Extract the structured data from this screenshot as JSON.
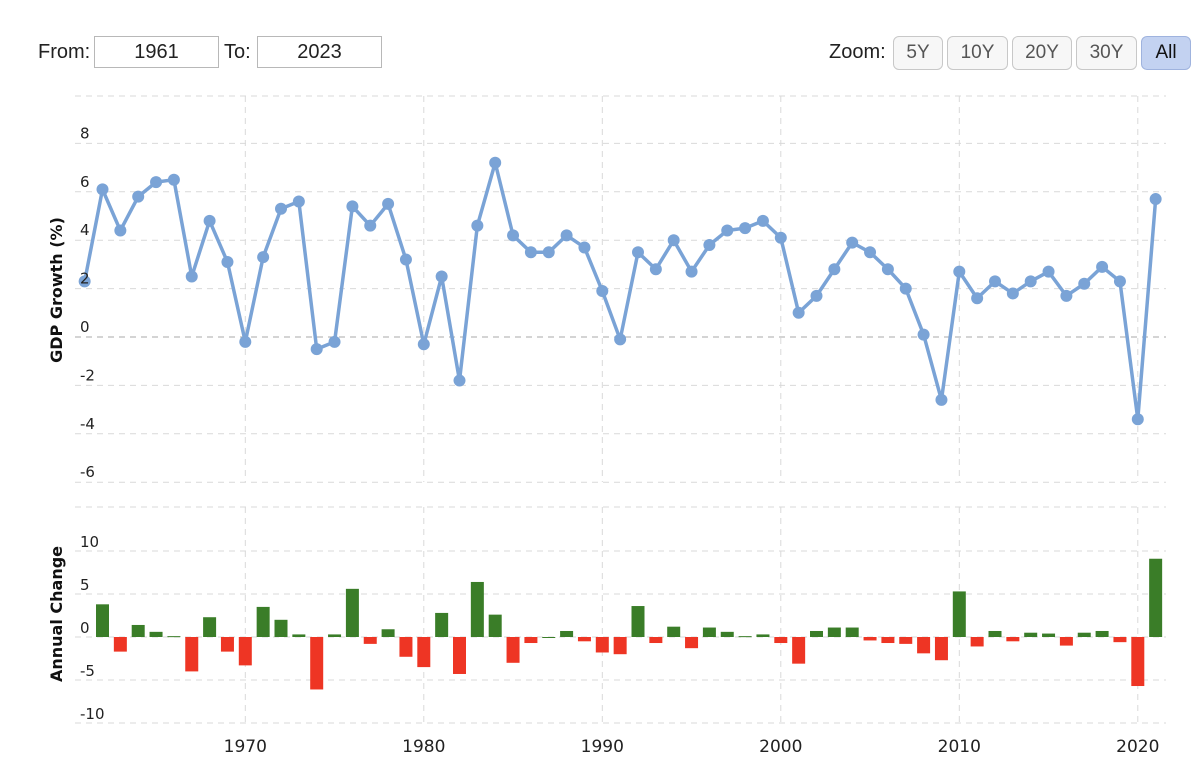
{
  "controls": {
    "from_label": "From:",
    "from_value": "1961",
    "to_label": "To:",
    "to_value": "2023",
    "zoom_label": "Zoom:",
    "zoom_buttons": [
      {
        "label": "5Y",
        "active": false
      },
      {
        "label": "10Y",
        "active": false
      },
      {
        "label": "20Y",
        "active": false
      },
      {
        "label": "30Y",
        "active": false
      },
      {
        "label": "All",
        "active": true
      }
    ]
  },
  "colors": {
    "line": "#7aa3d6",
    "positive": "#3a7d28",
    "negative": "#ee3524"
  },
  "chart_data": [
    {
      "type": "line",
      "title": "",
      "ylabel": "GDP Growth (%)",
      "xlabel": "",
      "ylim": [
        -6,
        8
      ],
      "yticks": [
        -6,
        -4,
        -2,
        0,
        2,
        4,
        6,
        8
      ],
      "xticks": [
        1970,
        1980,
        1990,
        2000,
        2010,
        2020
      ],
      "grid": true,
      "series": [
        {
          "x": [
            1961,
            1962,
            1963,
            1964,
            1965,
            1966,
            1967,
            1968,
            1969,
            1970,
            1971,
            1972,
            1973,
            1974,
            1975,
            1976,
            1977,
            1978,
            1979,
            1980,
            1981,
            1982,
            1983,
            1984,
            1985,
            1986,
            1987,
            1988,
            1989,
            1990,
            1991,
            1992,
            1993,
            1994,
            1995,
            1996,
            1997,
            1998,
            1999,
            2000,
            2001,
            2002,
            2003,
            2004,
            2005,
            2006,
            2007,
            2008,
            2009,
            2010,
            2011,
            2012,
            2013,
            2014,
            2015,
            2016,
            2017,
            2018,
            2019,
            2020,
            2021
          ],
          "values": [
            2.3,
            6.1,
            4.4,
            5.8,
            6.4,
            6.5,
            2.5,
            4.8,
            3.1,
            -0.2,
            3.3,
            5.3,
            5.6,
            -0.5,
            -0.2,
            5.4,
            4.6,
            5.5,
            3.2,
            -0.3,
            2.5,
            -1.8,
            4.6,
            7.2,
            4.2,
            3.5,
            3.5,
            4.2,
            3.7,
            1.9,
            -0.1,
            3.5,
            2.8,
            4.0,
            2.7,
            3.8,
            4.4,
            4.5,
            4.8,
            4.1,
            1.0,
            1.7,
            2.8,
            3.9,
            3.5,
            2.8,
            2.0,
            0.1,
            -2.6,
            2.7,
            1.6,
            2.3,
            1.8,
            2.3,
            2.7,
            1.7,
            2.2,
            2.9,
            2.3,
            -3.4,
            5.7
          ]
        }
      ]
    },
    {
      "type": "bar",
      "title": "",
      "ylabel": "Annual Change",
      "xlabel": "",
      "ylim": [
        -10,
        10
      ],
      "yticks": [
        -10,
        -5,
        0,
        5,
        10
      ],
      "grid": true,
      "series": [
        {
          "x": [
            1962,
            1963,
            1964,
            1965,
            1966,
            1967,
            1968,
            1969,
            1970,
            1971,
            1972,
            1973,
            1974,
            1975,
            1976,
            1977,
            1978,
            1979,
            1980,
            1981,
            1982,
            1983,
            1984,
            1985,
            1986,
            1987,
            1988,
            1989,
            1990,
            1991,
            1992,
            1993,
            1994,
            1995,
            1996,
            1997,
            1998,
            1999,
            2000,
            2001,
            2002,
            2003,
            2004,
            2005,
            2006,
            2007,
            2008,
            2009,
            2010,
            2011,
            2012,
            2013,
            2014,
            2015,
            2016,
            2017,
            2018,
            2019,
            2020,
            2021
          ],
          "values": [
            3.8,
            -1.7,
            1.4,
            0.6,
            0.1,
            -4.0,
            2.3,
            -1.7,
            -3.3,
            3.5,
            2.0,
            0.3,
            -6.1,
            0.3,
            5.6,
            -0.8,
            0.9,
            -2.3,
            -3.5,
            2.8,
            -4.3,
            6.4,
            2.6,
            -3.0,
            -0.7,
            0.0,
            0.7,
            -0.5,
            -1.8,
            -2.0,
            3.6,
            -0.7,
            1.2,
            -1.3,
            1.1,
            0.6,
            0.1,
            0.3,
            -0.7,
            -3.1,
            0.7,
            1.1,
            1.1,
            -0.4,
            -0.7,
            -0.8,
            -1.9,
            -2.7,
            5.3,
            -1.1,
            0.7,
            -0.5,
            0.5,
            0.4,
            -1.0,
            0.5,
            0.7,
            -0.6,
            -5.7,
            9.1
          ]
        }
      ]
    }
  ]
}
